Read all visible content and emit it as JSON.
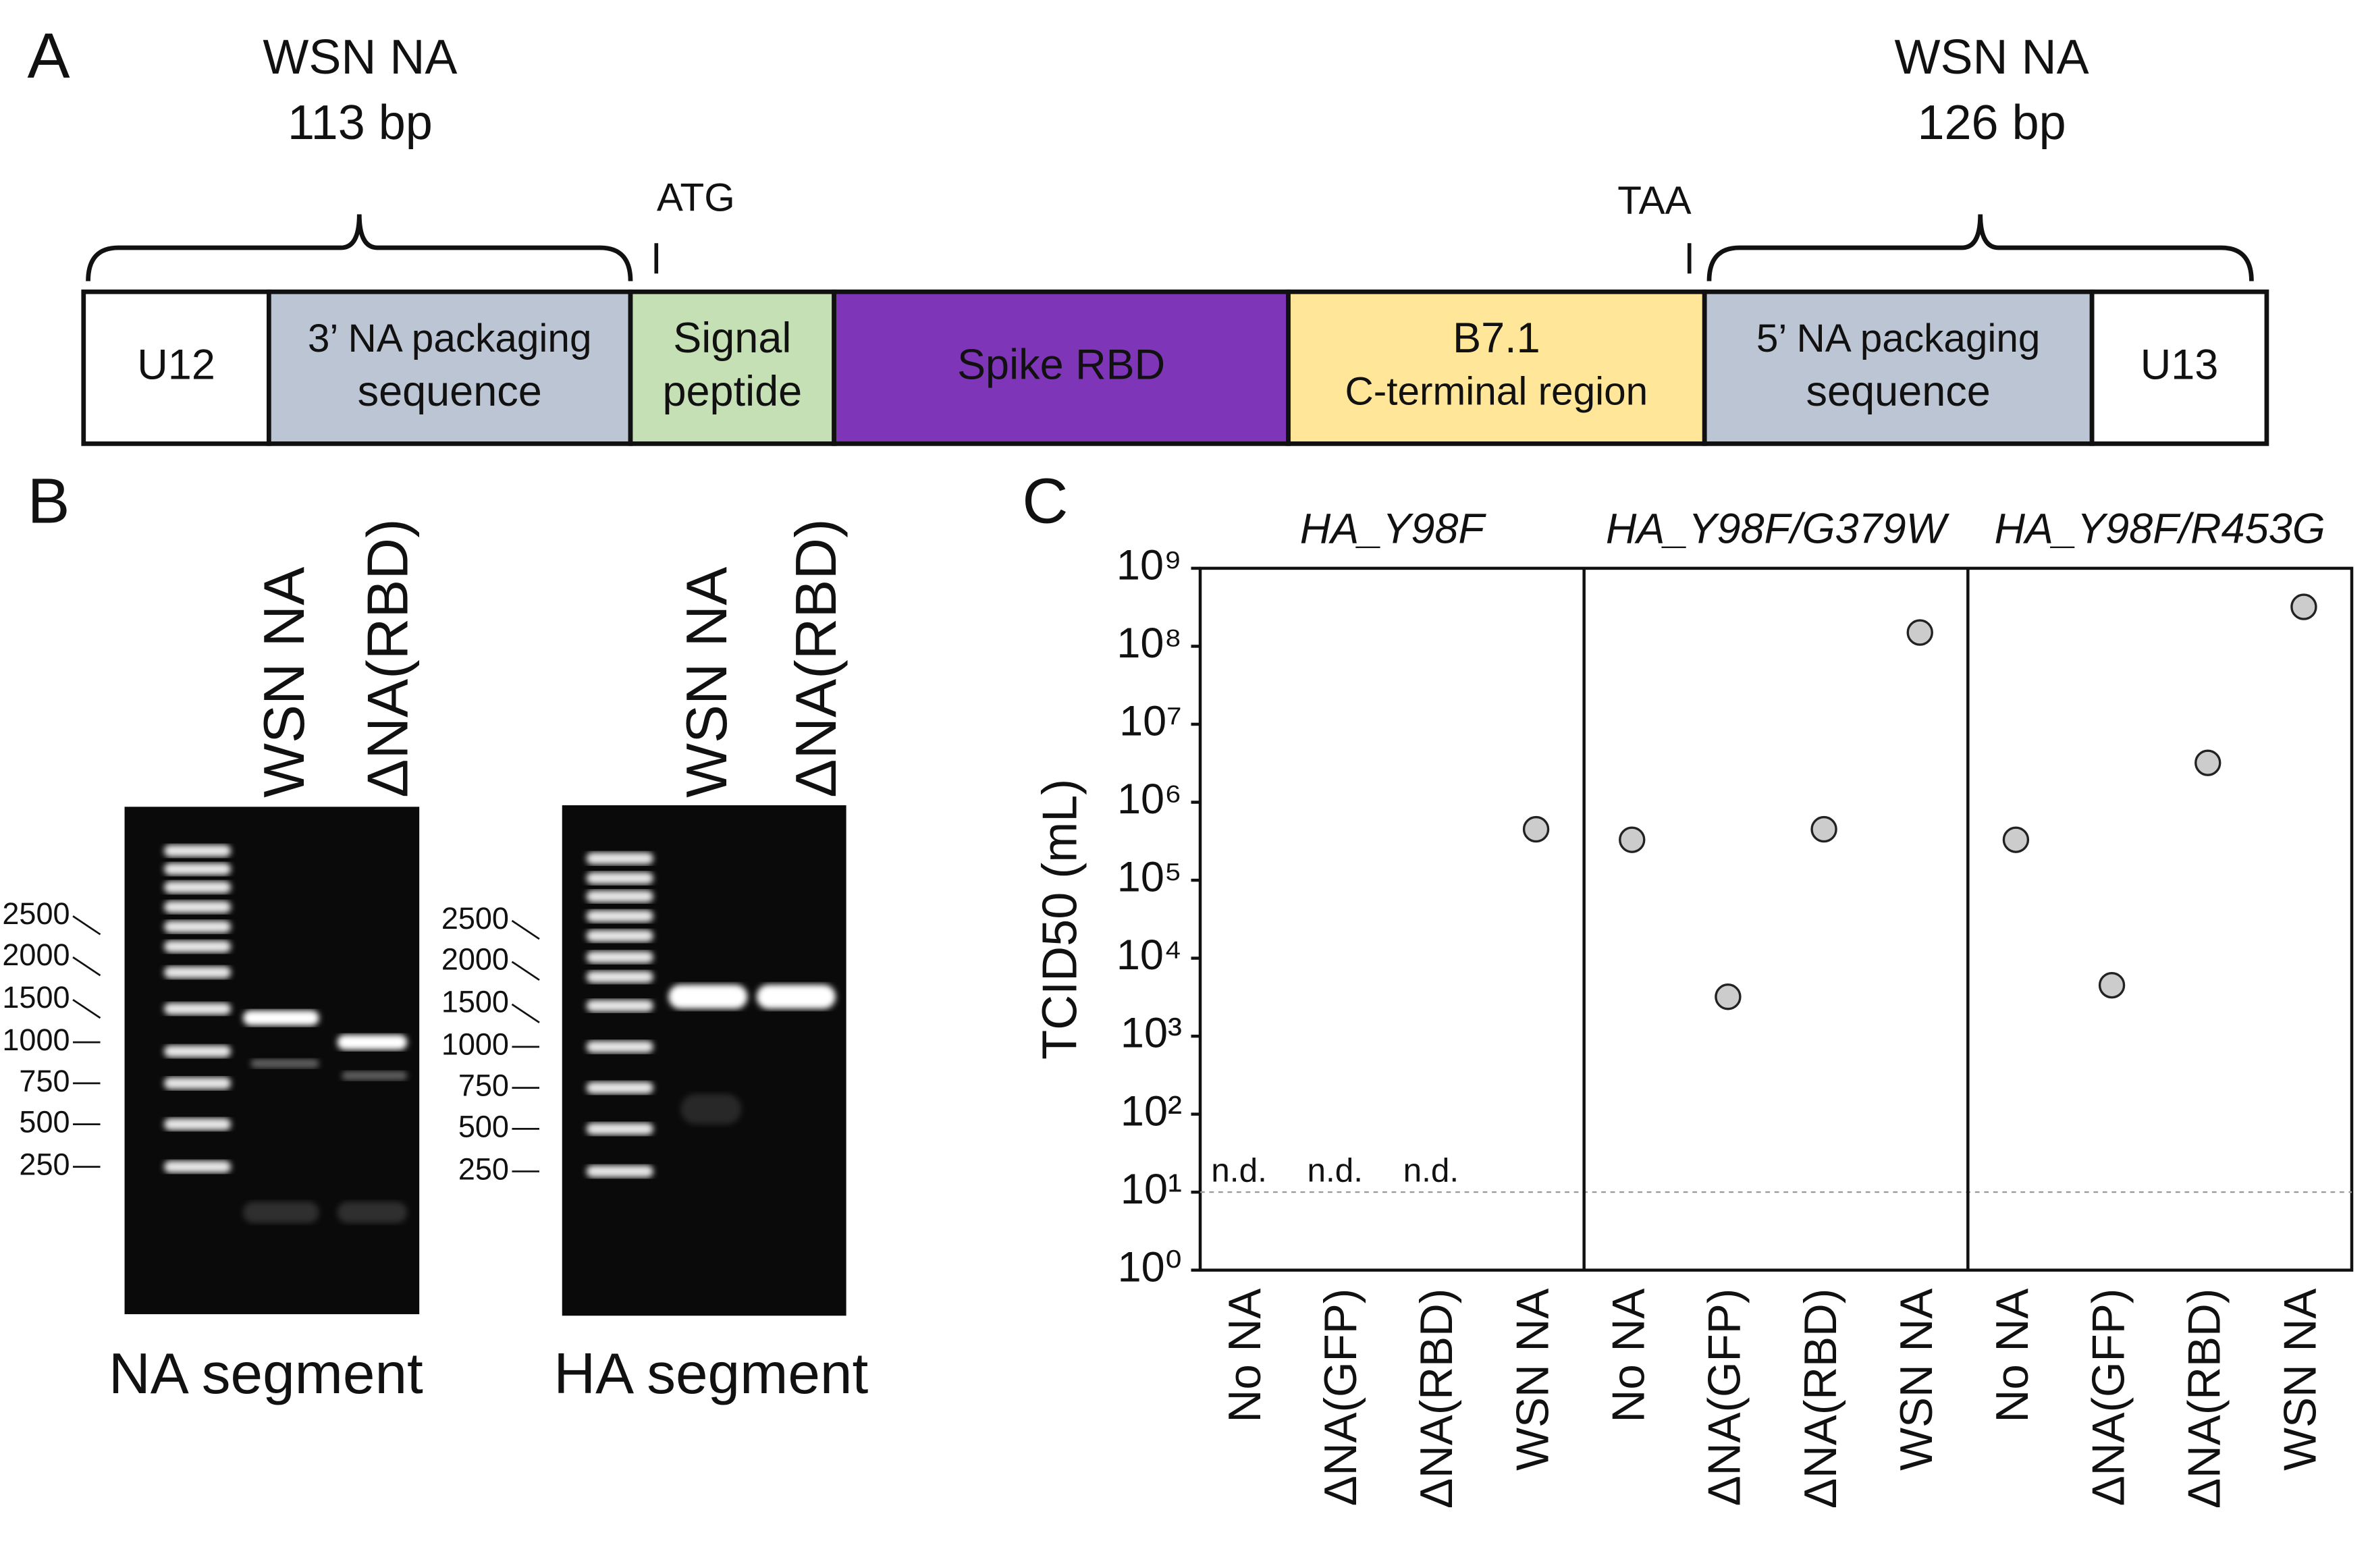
{
  "panel_labels": [
    "A",
    "B",
    "C"
  ],
  "construct": {
    "segments": [
      {
        "lines": [
          "U12"
        ],
        "color": "#ffffff",
        "text_color": "#111111"
      },
      {
        "lines": [
          "3’ NA packaging",
          "sequence"
        ],
        "color": "#bcc5d3",
        "text_color": "#111111"
      },
      {
        "lines": [
          "Signal",
          "peptide"
        ],
        "color": "#c5e0b4",
        "text_color": "#111111"
      },
      {
        "lines": [
          "Spike RBD"
        ],
        "color": "#7f35b8",
        "text_color": "#ffffff"
      },
      {
        "lines": [
          "B7.1",
          "C-terminal region"
        ],
        "color": "#ffe699",
        "text_color": "#111111"
      },
      {
        "lines": [
          "5’ NA packaging",
          "sequence"
        ],
        "color": "#bcc5d3",
        "text_color": "#111111"
      },
      {
        "lines": [
          "U13"
        ],
        "color": "#ffffff",
        "text_color": "#111111"
      }
    ],
    "braces": [
      {
        "lines": [
          "WSN NA",
          "113 bp"
        ]
      },
      {
        "lines": [
          "WSN NA",
          "126 bp"
        ]
      }
    ],
    "markers": [
      "ATG",
      "TAA"
    ]
  },
  "gels": [
    {
      "lanes": [
        "WSN NA",
        "ΔNA(RBD)"
      ],
      "ladder": [
        2500,
        2000,
        1500,
        1000,
        750,
        500,
        250
      ],
      "caption": "NA segment"
    },
    {
      "lanes": [
        "WSN NA",
        "ΔNA(RBD)"
      ],
      "ladder": [
        2500,
        2000,
        1500,
        1000,
        750,
        500,
        250
      ],
      "caption": "HA segment"
    }
  ],
  "chart_data": {
    "type": "scatter",
    "y_label": "TCID50 (mL)",
    "log_y": true,
    "color": "#cccccc",
    "categories": [
      "No NA",
      "ΔNA(GFP)",
      "ΔNA(RBD)",
      "WSN NA"
    ],
    "series": [
      {
        "name": "HA_Y98F",
        "values": [
          null,
          null,
          null,
          450000
        ],
        "value_labels": [
          "n.d.",
          "n.d.",
          "n.d.",
          null
        ]
      },
      {
        "name": "HA_Y98F/G379W",
        "values": [
          330000,
          3200,
          450000,
          150000000
        ]
      },
      {
        "name": "HA_Y98F/R453G",
        "values": [
          330000,
          4500,
          3200000,
          320000000
        ]
      }
    ],
    "ylim": [
      1,
      1000000000
    ],
    "yticks": [
      {
        "value": 1,
        "label": "10⁰"
      },
      {
        "value": 10,
        "label": "10¹"
      },
      {
        "value": 100,
        "label": "10²"
      },
      {
        "value": 1000,
        "label": "10³"
      },
      {
        "value": 10000,
        "label": "10⁴"
      },
      {
        "value": 100000,
        "label": "10⁵"
      },
      {
        "value": 1000000,
        "label": "10⁶"
      },
      {
        "value": 10000000,
        "label": "10⁷"
      },
      {
        "value": 100000000,
        "label": "10⁸"
      },
      {
        "value": 1000000000,
        "label": "10⁹"
      }
    ],
    "detection_limit": 10
  }
}
